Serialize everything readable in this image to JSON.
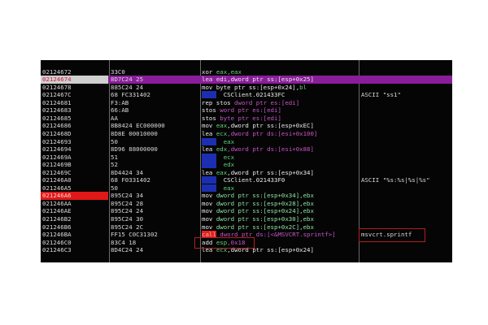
{
  "columns": [
    "address",
    "hex_dump",
    "disassembly",
    "comment"
  ],
  "rows": [
    {
      "address": "",
      "hex": "",
      "dis": [],
      "comment": ""
    },
    {
      "address": "02124672",
      "hex": "33C0",
      "dis": [
        [
          "xor ",
          "m"
        ],
        [
          "eax,eax",
          "r"
        ]
      ],
      "comment": ""
    },
    {
      "address": "02124674",
      "hex": "8D7C24 25",
      "dis": [
        [
          "lea ",
          "m"
        ],
        [
          "edi",
          "r"
        ],
        [
          ",dword ptr ss:[esp+0x25]",
          "m"
        ]
      ],
      "comment": "",
      "selected": true
    },
    {
      "address": "02124678",
      "hex": "885C24 24",
      "dis": [
        [
          "mov byte ptr ss:[esp+0x24],",
          "m"
        ],
        [
          "bl",
          "r"
        ]
      ],
      "comment": ""
    },
    {
      "address": "0212467C",
      "hex": "68 FC331402",
      "dis": [
        [
          "push",
          "push"
        ],
        [
          "  CSClient.021433FC",
          "m"
        ]
      ],
      "comment": "ASCII \"ss1\""
    },
    {
      "address": "02124681",
      "hex": "F3:AB",
      "dis": [
        [
          "rep stos ",
          "m"
        ],
        [
          "dword ptr es:[edi]",
          "p"
        ]
      ],
      "comment": ""
    },
    {
      "address": "02124683",
      "hex": "66:AB",
      "dis": [
        [
          "stos ",
          "m"
        ],
        [
          "word ptr es:[edi]",
          "p"
        ]
      ],
      "comment": ""
    },
    {
      "address": "02124685",
      "hex": "AA",
      "dis": [
        [
          "stos ",
          "m"
        ],
        [
          "byte ptr es:[edi]",
          "p"
        ]
      ],
      "comment": ""
    },
    {
      "address": "02124686",
      "hex": "8B8424 EC000000",
      "dis": [
        [
          "mov ",
          "m"
        ],
        [
          "eax",
          "r"
        ],
        [
          ",dword ptr ss:[esp+0xEC]",
          "m"
        ]
      ],
      "comment": ""
    },
    {
      "address": "0212468D",
      "hex": "8D8E 00010000",
      "dis": [
        [
          "lea ",
          "m"
        ],
        [
          "ecx",
          "r"
        ],
        [
          ",dword ptr ds:[esi+0x100]",
          "p"
        ]
      ],
      "comment": ""
    },
    {
      "address": "02124693",
      "hex": "50",
      "dis": [
        [
          "push",
          "push"
        ],
        [
          "  eax",
          "r"
        ]
      ],
      "comment": ""
    },
    {
      "address": "02124694",
      "hex": "8D96 88000000",
      "dis": [
        [
          "lea ",
          "m"
        ],
        [
          "edx",
          "r"
        ],
        [
          ",dword ptr ds:[esi+0x88]",
          "p"
        ]
      ],
      "comment": ""
    },
    {
      "address": "0212469A",
      "hex": "51",
      "dis": [
        [
          "push",
          "push"
        ],
        [
          "  ecx",
          "r"
        ]
      ],
      "comment": ""
    },
    {
      "address": "0212469B",
      "hex": "52",
      "dis": [
        [
          "push",
          "push"
        ],
        [
          "  edx",
          "r"
        ]
      ],
      "comment": ""
    },
    {
      "address": "0212469C",
      "hex": "8D4424 34",
      "dis": [
        [
          "lea ",
          "m"
        ],
        [
          "eax",
          "r"
        ],
        [
          ",dword ptr ss:[esp+0x34]",
          "m"
        ]
      ],
      "comment": ""
    },
    {
      "address": "021246A0",
      "hex": "68 F0331402",
      "dis": [
        [
          "push",
          "push"
        ],
        [
          "  CSClient.021433F0",
          "m"
        ]
      ],
      "comment": "ASCII \"%s:%s|%s|%s\""
    },
    {
      "address": "021246A5",
      "hex": "50",
      "dis": [
        [
          "push",
          "push"
        ],
        [
          "  eax",
          "r"
        ]
      ],
      "comment": ""
    },
    {
      "address": "021246A6",
      "hex": "895C24 34",
      "dis": [
        [
          "mov ",
          "m"
        ],
        [
          "dword ptr ss:[esp+0x34],ebx",
          "g"
        ]
      ],
      "comment": "",
      "breakpoint": true
    },
    {
      "address": "021246AA",
      "hex": "895C24 28",
      "dis": [
        [
          "mov ",
          "m"
        ],
        [
          "dword ptr ss:[esp+0x28],ebx",
          "g"
        ]
      ],
      "comment": ""
    },
    {
      "address": "021246AE",
      "hex": "895C24 24",
      "dis": [
        [
          "mov ",
          "m"
        ],
        [
          "dword ptr ss:[esp+0x24],ebx",
          "g"
        ]
      ],
      "comment": ""
    },
    {
      "address": "021246B2",
      "hex": "895C24 30",
      "dis": [
        [
          "mov ",
          "m"
        ],
        [
          "dword ptr ss:[esp+0x30],ebx",
          "g"
        ]
      ],
      "comment": ""
    },
    {
      "address": "021246B6",
      "hex": "895C24 2C",
      "dis": [
        [
          "mov ",
          "m"
        ],
        [
          "dword ptr ss:[esp+0x2C],ebx",
          "g"
        ]
      ],
      "comment": ""
    },
    {
      "address": "021246BA",
      "hex": "FF15 C0C31302",
      "dis": [
        [
          "call",
          "call"
        ],
        [
          " dword ptr ds:[<&MSVCRT.sprintf>]",
          "p"
        ]
      ],
      "comment": "msvcrt.sprintf"
    },
    {
      "address": "021246C0",
      "hex": "83C4 18",
      "dis": [
        [
          "add ",
          "m"
        ],
        [
          "esp",
          "r"
        ],
        [
          ",0x18",
          "p"
        ]
      ],
      "comment": ""
    },
    {
      "address": "021246C3",
      "hex": "8D4C24 24",
      "dis": [
        [
          "lea ",
          "m"
        ],
        [
          "ecx",
          "r"
        ],
        [
          ",dword ptr ss:[esp+0x24]",
          "m"
        ]
      ],
      "comment": ""
    },
    {
      "address": "",
      "hex": "",
      "dis": [],
      "comment": ""
    }
  ],
  "colors": {
    "background": "#050505",
    "selected_row": "#8a1e9a",
    "breakpoint": "#e01818",
    "push_highlight": "#1c2fb0",
    "call_highlight": "#e02020"
  }
}
